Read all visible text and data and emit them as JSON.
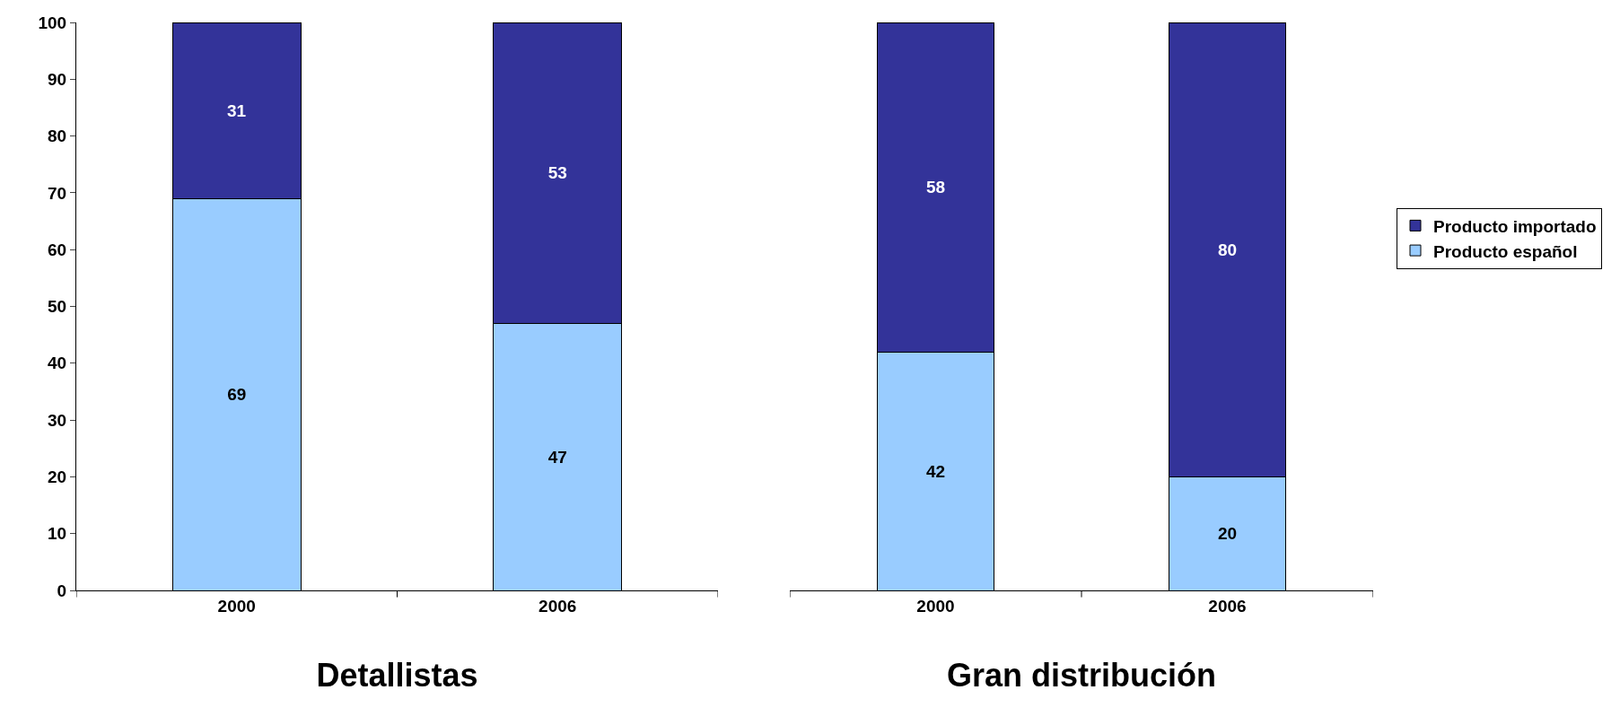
{
  "chart_data": [
    {
      "type": "bar",
      "xlabel": "Detallistas",
      "categories": [
        "2000",
        "2006"
      ],
      "stacked": true,
      "data_labels": true,
      "ylim": [
        0,
        100
      ],
      "yticks": [
        0,
        10,
        20,
        30,
        40,
        50,
        60,
        70,
        80,
        90,
        100
      ],
      "grid": false,
      "legend": false,
      "series": [
        {
          "color": "#99ccff",
          "values": [
            69,
            47
          ]
        },
        {
          "color": "#333399",
          "values": [
            31,
            53
          ]
        }
      ]
    },
    {
      "type": "bar",
      "xlabel": "Gran distribución",
      "categories": [
        "2000",
        "2006"
      ],
      "stacked": true,
      "data_labels": true,
      "ylim": [
        0,
        100
      ],
      "tick_labels": "x",
      "grid": false,
      "legend": "right",
      "series": [
        {
          "name": "Producto español",
          "color": "#99ccff",
          "values": [
            42,
            20
          ]
        },
        {
          "name": "Producto importado",
          "color": "#333399",
          "values": [
            58,
            80
          ]
        }
      ]
    }
  ]
}
